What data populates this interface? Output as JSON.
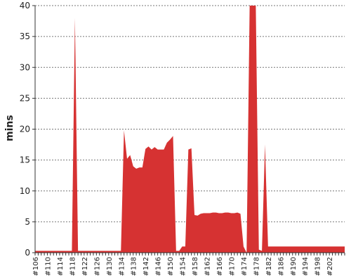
{
  "chart_data": {
    "type": "area",
    "title": "",
    "xlabel": "",
    "ylabel": "mins",
    "ylim": [
      0,
      40
    ],
    "yticks": [
      0,
      5,
      10,
      15,
      20,
      25,
      30,
      35,
      40
    ],
    "grid": true,
    "legend": "none",
    "x_tick_labels": [
      "#106",
      "#110",
      "#114",
      "#118",
      "#122",
      "#126",
      "#130",
      "#134",
      "#138",
      "#142",
      "#146",
      "#150",
      "#154",
      "#158",
      "#162",
      "#166",
      "#170",
      "#174",
      "#178",
      "#182",
      "#186",
      "#190",
      "#194",
      "#198",
      "#202"
    ],
    "x_start": 106,
    "x_end": 207,
    "series": [
      {
        "color": "#d63232",
        "x": [
          106,
          107,
          108,
          109,
          110,
          111,
          112,
          113,
          114,
          115,
          116,
          117,
          118,
          119,
          120,
          121,
          122,
          123,
          124,
          125,
          126,
          127,
          128,
          129,
          130,
          131,
          132,
          133,
          134,
          135,
          136,
          137,
          138,
          139,
          140,
          141,
          142,
          143,
          144,
          145,
          146,
          147,
          148,
          149,
          150,
          151,
          152,
          153,
          154,
          155,
          156,
          157,
          158,
          159,
          160,
          161,
          162,
          163,
          164,
          165,
          166,
          167,
          168,
          169,
          170,
          171,
          172,
          173,
          174,
          175,
          176,
          177,
          178,
          179,
          180,
          181,
          182,
          183,
          184,
          185,
          186,
          187,
          188,
          189,
          190,
          191,
          192,
          193,
          194,
          195,
          196,
          197,
          198,
          199,
          200,
          201,
          202,
          203,
          204,
          205,
          206,
          207
        ],
        "values": [
          0.3,
          0.3,
          0.3,
          0.3,
          0.3,
          0.3,
          0.3,
          0.3,
          0.3,
          0.3,
          0.3,
          0.3,
          0.3,
          38,
          0.3,
          0.3,
          0.3,
          0.3,
          0.3,
          0.3,
          0.3,
          0.3,
          0.3,
          0.3,
          0.3,
          0.3,
          0.3,
          0.3,
          0.3,
          19.8,
          15.2,
          15.8,
          14,
          13.6,
          13.8,
          13.8,
          16.8,
          17.2,
          16.7,
          17.1,
          16.7,
          16.7,
          16.7,
          17.8,
          18.3,
          18.9,
          0.3,
          0.3,
          1,
          1,
          16.7,
          16.9,
          6.1,
          6,
          6.3,
          6.4,
          6.4,
          6.4,
          6.5,
          6.5,
          6.4,
          6.4,
          6.5,
          6.5,
          6.4,
          6.4,
          6.5,
          6.3,
          1,
          0,
          40,
          40,
          40,
          0.5,
          0.3,
          17.5,
          1,
          1,
          1,
          1,
          1,
          1,
          1,
          1,
          1,
          1,
          1,
          1,
          1,
          1,
          1,
          1,
          1,
          1,
          1,
          1,
          1,
          1,
          1,
          1,
          1,
          1
        ]
      }
    ]
  }
}
